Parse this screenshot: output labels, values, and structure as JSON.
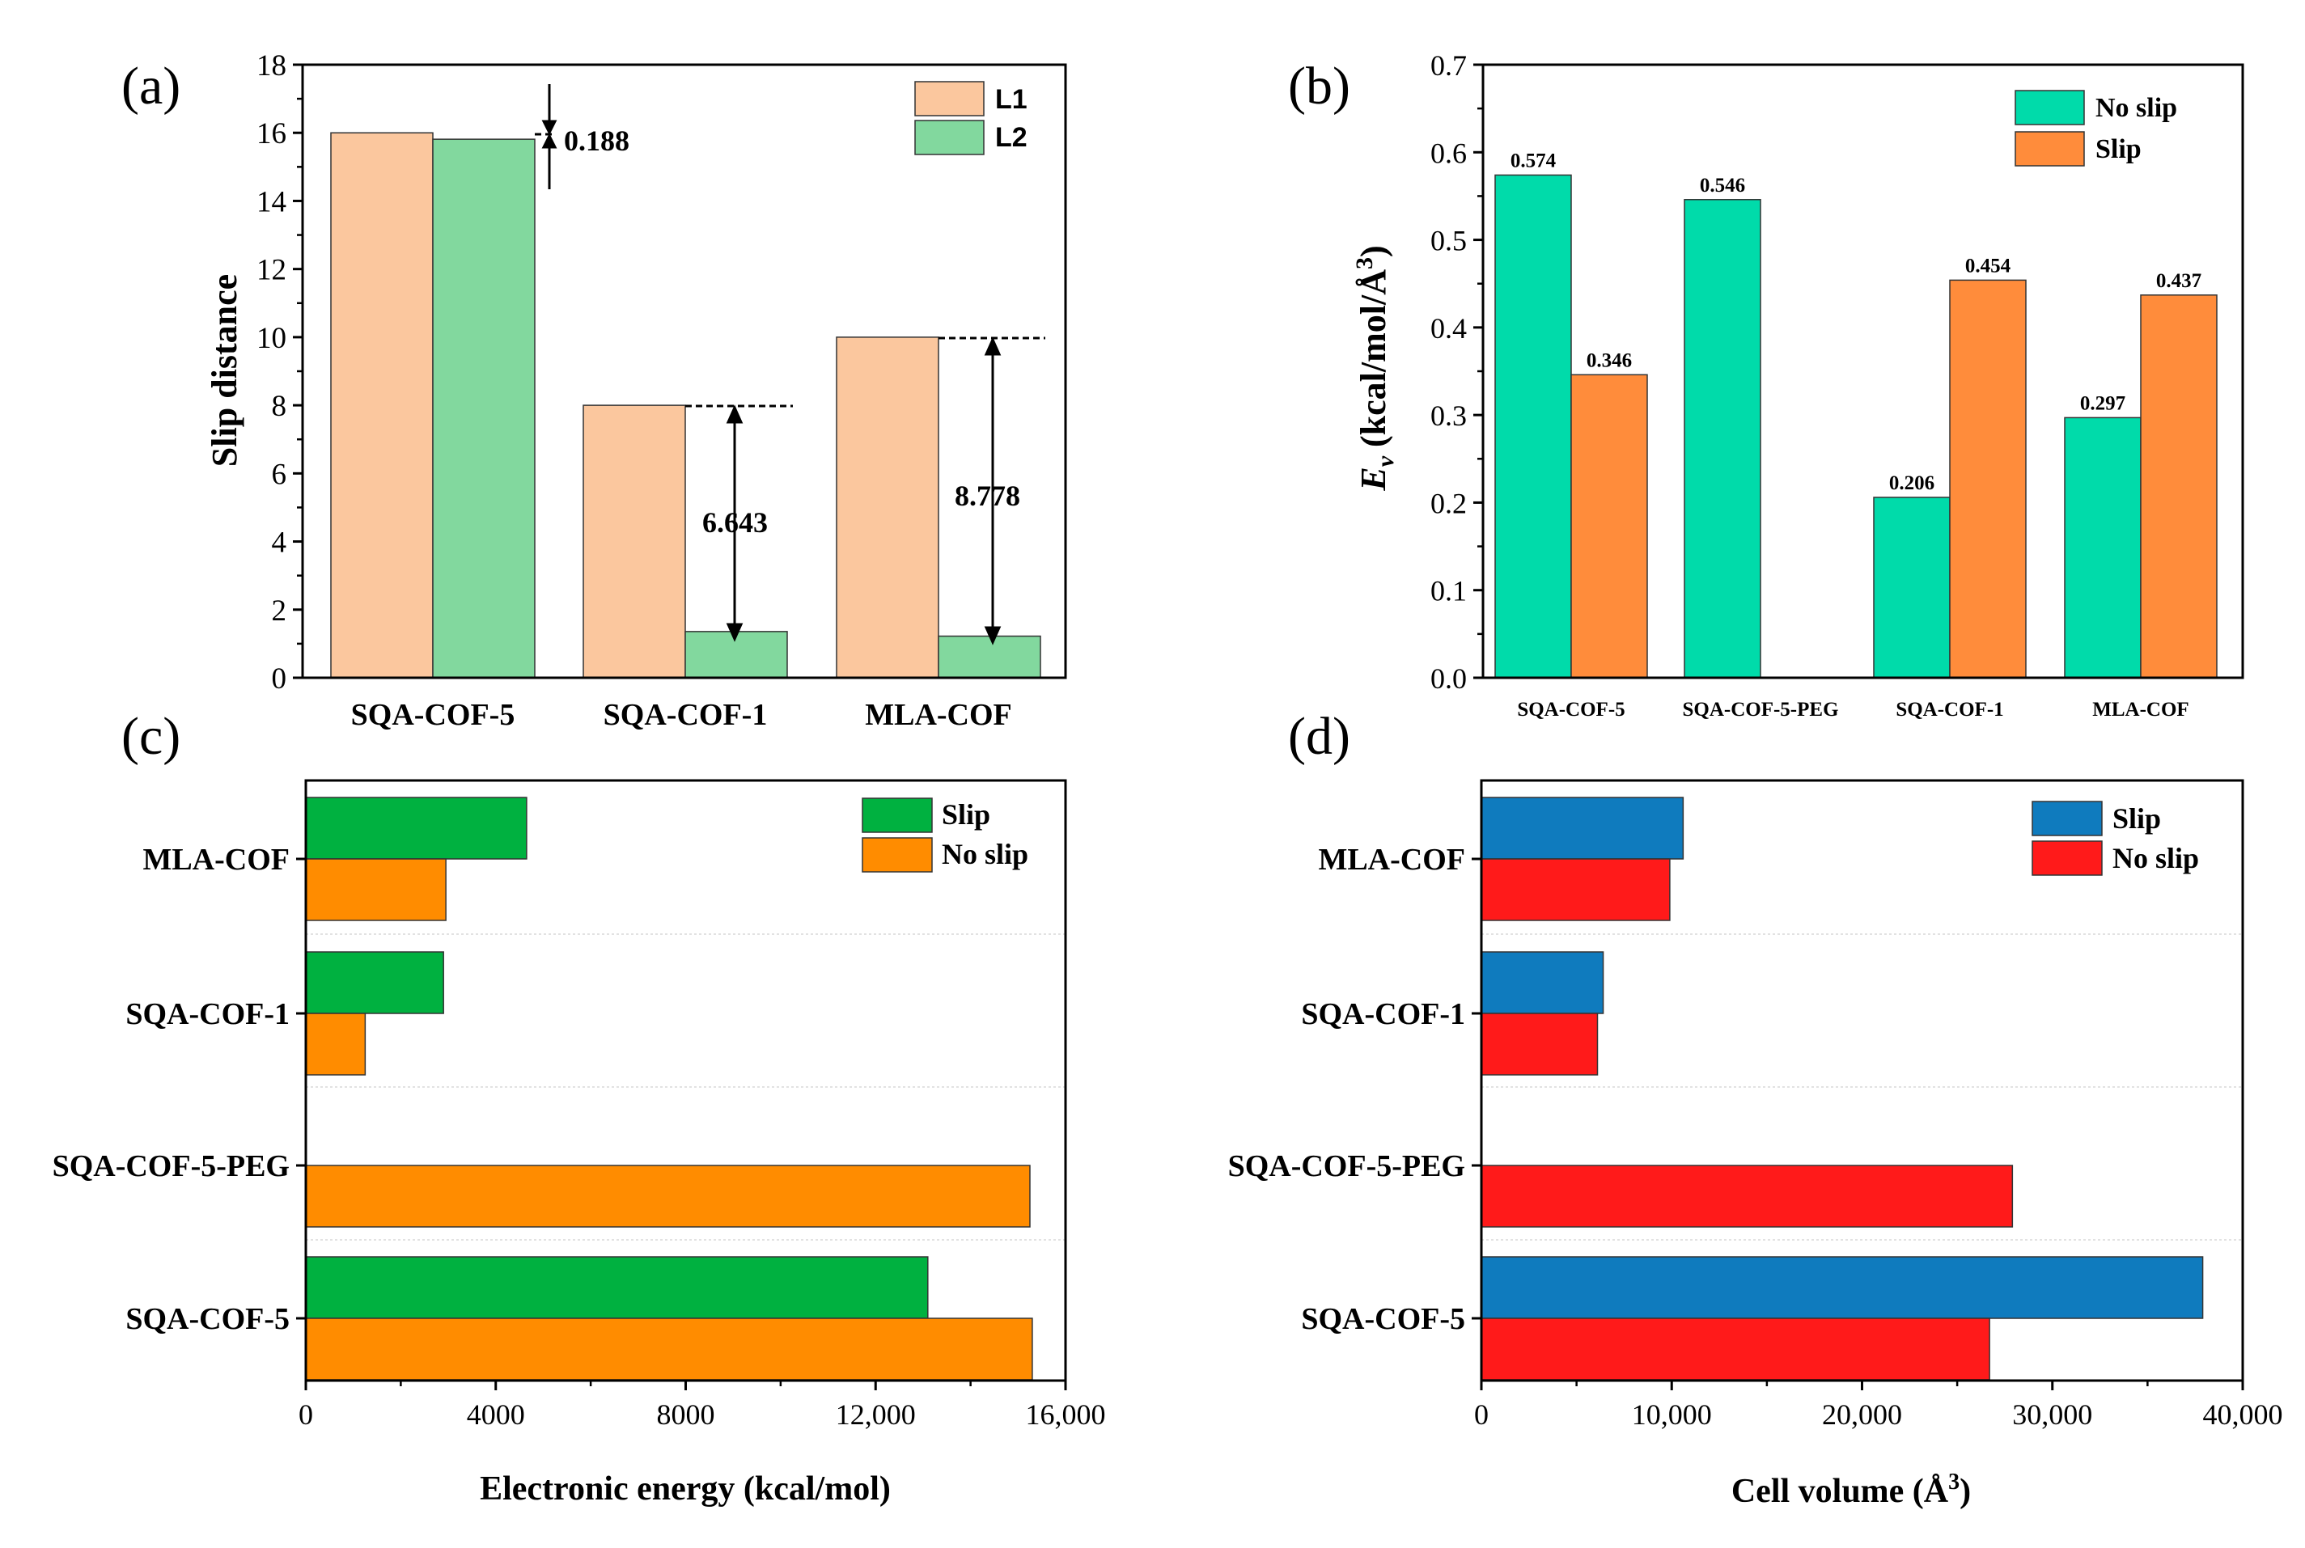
{
  "chart_data": [
    {
      "id": "a",
      "panel_label": "(a)",
      "type": "bar",
      "categories": [
        "SQA-COF-5",
        "SQA-COF-1",
        "MLA-COF"
      ],
      "series": [
        {
          "name": "L1",
          "color": "#FBC79E",
          "values": [
            16.0,
            8.0,
            10.0
          ]
        },
        {
          "name": "L2",
          "color": "#82D89E",
          "values": [
            15.812,
            1.357,
            1.222
          ]
        }
      ],
      "ylabel": "Slip distance",
      "ylim": [
        0,
        18
      ],
      "yticks": [
        "0",
        "2",
        "4",
        "6",
        "8",
        "10",
        "12",
        "14",
        "16",
        "18"
      ],
      "legend_position": "top-right",
      "annotations": [
        "0.188",
        "6.643",
        "8.778"
      ]
    },
    {
      "id": "b",
      "panel_label": "(b)",
      "type": "bar",
      "categories": [
        "SQA-COF-5",
        "SQA-COF-5-PEG",
        "SQA-COF-1",
        "MLA-COF"
      ],
      "series": [
        {
          "name": "No slip",
          "color": "#00DBAA",
          "values": [
            0.574,
            0.546,
            0.206,
            0.297
          ],
          "labels": [
            "0.574",
            "0.546",
            "0.206",
            "0.297"
          ]
        },
        {
          "name": "Slip",
          "color": "#FF8C3B",
          "values": [
            0.346,
            null,
            0.454,
            0.437
          ],
          "labels": [
            "0.346",
            "",
            "0.454",
            "0.437"
          ]
        }
      ],
      "ylabel_main": "E",
      "ylabel_sub": "v",
      "ylabel_rest": " (kcal/mol/Å",
      "ylabel_sup": "3",
      "ylabel_close": ")",
      "ylim": [
        0,
        0.7
      ],
      "yticks": [
        "0.0",
        "0.1",
        "0.2",
        "0.3",
        "0.4",
        "0.5",
        "0.6",
        "0.7"
      ],
      "legend_position": "top-right"
    },
    {
      "id": "c",
      "panel_label": "(c)",
      "type": "bar",
      "orientation": "horizontal",
      "categories": [
        "SQA-COF-5",
        "SQA-COF-5-PEG",
        "SQA-COF-1",
        "MLA-COF"
      ],
      "series": [
        {
          "name": "Slip",
          "color": "#00B140",
          "values": [
            13100,
            null,
            2900,
            4650
          ]
        },
        {
          "name": "No slip",
          "color": "#FF8C00",
          "values": [
            15300,
            15250,
            1250,
            2950
          ]
        }
      ],
      "xlabel": "Electronic energy (kcal/mol)",
      "xlim": [
        0,
        16000
      ],
      "xticks": [
        "0",
        "4000",
        "8000",
        "12,000",
        "16,000"
      ],
      "legend_position": "top-right"
    },
    {
      "id": "d",
      "panel_label": "(d)",
      "type": "bar",
      "orientation": "horizontal",
      "categories": [
        "SQA-COF-5",
        "SQA-COF-5-PEG",
        "SQA-COF-1",
        "MLA-COF"
      ],
      "series": [
        {
          "name": "Slip",
          "color": "#0F7BBE",
          "values": [
            37900,
            null,
            6400,
            10600
          ]
        },
        {
          "name": "No slip",
          "color": "#FF1A1A",
          "values": [
            26700,
            27900,
            6100,
            9900
          ]
        }
      ],
      "xlabel_main": "Cell volume (Å",
      "xlabel_sup": "3",
      "xlabel_close": ")",
      "xlim": [
        0,
        40000
      ],
      "xticks": [
        "0",
        "10,000",
        "20,000",
        "30,000",
        "40,000"
      ],
      "legend_position": "top-right"
    }
  ]
}
